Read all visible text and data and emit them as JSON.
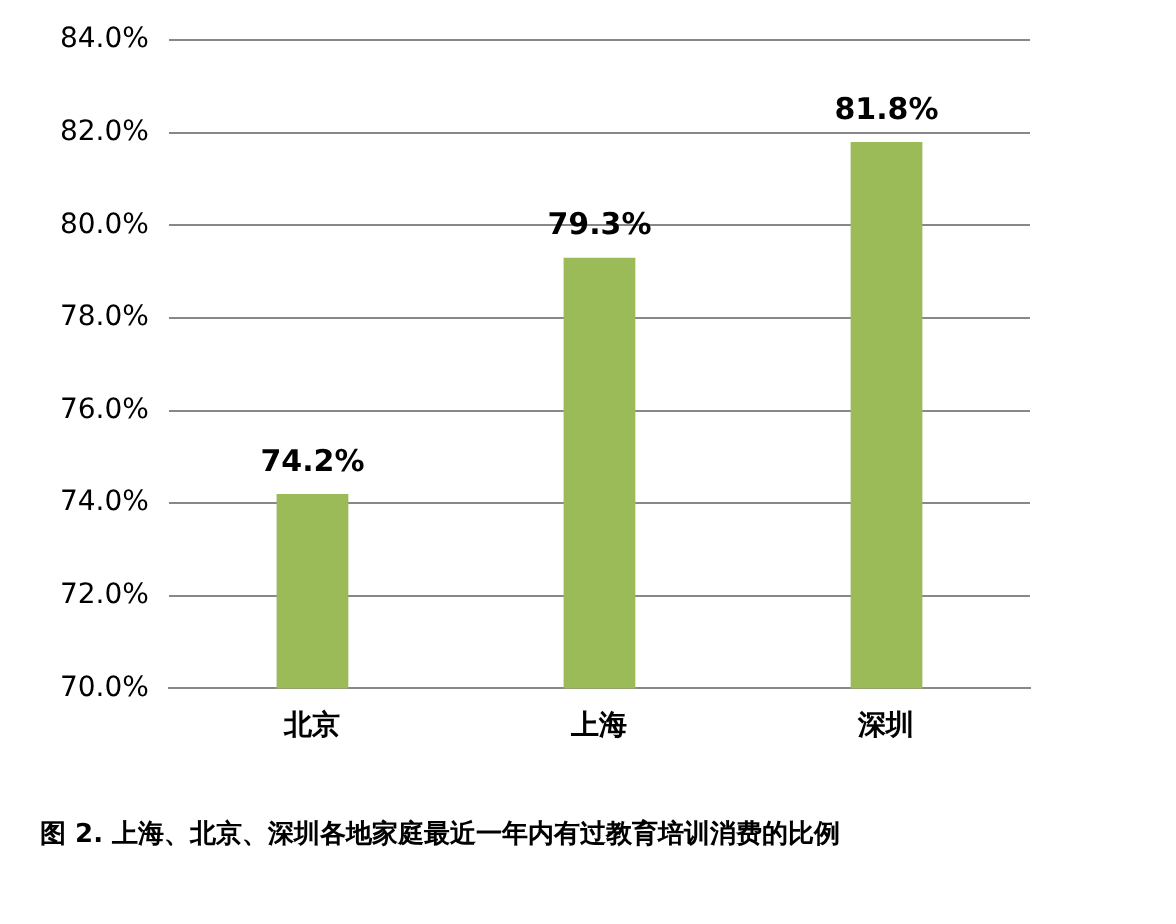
{
  "chart_data": {
    "type": "bar",
    "categories": [
      "北京",
      "上海",
      "深圳"
    ],
    "values": [
      74.2,
      79.3,
      81.8
    ],
    "color": "#9bbb59",
    "value_labels": [
      "74.2%",
      "79.3%",
      "81.8%"
    ],
    "ylim": [
      70,
      84
    ],
    "yticks": [
      {
        "value": 70,
        "label": "70.0%"
      },
      {
        "value": 72,
        "label": "72.0%"
      },
      {
        "value": 74,
        "label": "74.0%"
      },
      {
        "value": 76,
        "label": "76.0%"
      },
      {
        "value": 78,
        "label": "78.0%"
      },
      {
        "value": 80,
        "label": "80.0%"
      },
      {
        "value": 82,
        "label": "82.0%"
      },
      {
        "value": 84,
        "label": "84.0%"
      }
    ],
    "grid": "y",
    "legend": false,
    "annotations": [
      "图 2. 上海、北京、深圳各地家庭最近一年内有过教育培训消费的比例"
    ]
  }
}
